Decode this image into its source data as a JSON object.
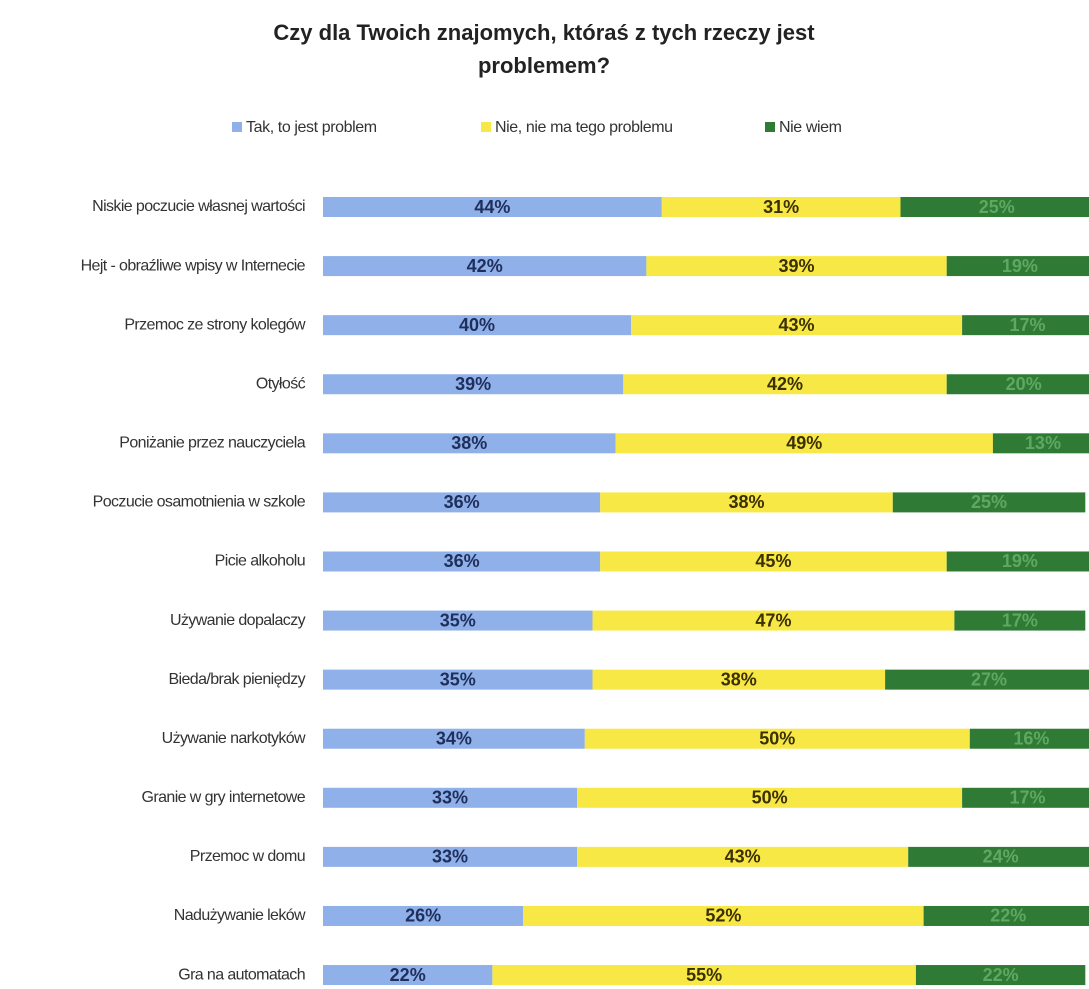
{
  "chart_data": {
    "type": "stacked_bar_horizontal",
    "title": "Czy dla Twoich znajomych, któraś z tych rzeczy jest problemem?",
    "categories": [
      "Niskie poczucie własnej wartości",
      "Hejt - obraźliwe wpisy w Internecie",
      "Przemoc ze strony kolegów",
      "Otyłość",
      "Poniżanie przez nauczyciela",
      "Poczucie osamotnienia w szkole",
      "Picie alkoholu",
      "Używanie dopalaczy",
      "Bieda/brak pieniędzy",
      "Używanie narkotyków",
      "Granie w gry internetowe",
      "Przemoc w domu",
      "Nadużywanie leków",
      "Gra na automatach"
    ],
    "series": [
      {
        "name": "Tak, to jest problem",
        "color": "#8fb0e8",
        "label_color": "#1f2f5c",
        "values": [
          44,
          42,
          40,
          39,
          38,
          36,
          36,
          35,
          35,
          34,
          33,
          33,
          26,
          22
        ],
        "value_labels": [
          "44%",
          "42%",
          "40%",
          "39%",
          "38%",
          "36%",
          "36%",
          "35%",
          "35%",
          "34%",
          "33%",
          "33%",
          "26%",
          "22%"
        ]
      },
      {
        "name": "Nie, nie ma tego problemu",
        "color": "#f8e846",
        "label_color": "#3a3000",
        "values": [
          31,
          39,
          43,
          42,
          49,
          38,
          45,
          47,
          38,
          50,
          50,
          43,
          52,
          55
        ],
        "value_labels": [
          "31%",
          "39%",
          "43%",
          "42%",
          "49%",
          "38%",
          "45%",
          "47%",
          "38%",
          "50%",
          "50%",
          "43%",
          "52%",
          "55%"
        ]
      },
      {
        "name": "Nie wiem",
        "color": "#2f7a35",
        "label_color": "#5fa862",
        "values": [
          25,
          19,
          17,
          20,
          13,
          25,
          19,
          17,
          27,
          16,
          17,
          24,
          22,
          22
        ],
        "value_labels": [
          "25%",
          "19%",
          "17%",
          "20%",
          "13%",
          "25%",
          "19%",
          "17%",
          "27%",
          "16%",
          "17%",
          "24%",
          "22%",
          "22%"
        ]
      }
    ],
    "xlim": [
      0,
      100
    ]
  }
}
